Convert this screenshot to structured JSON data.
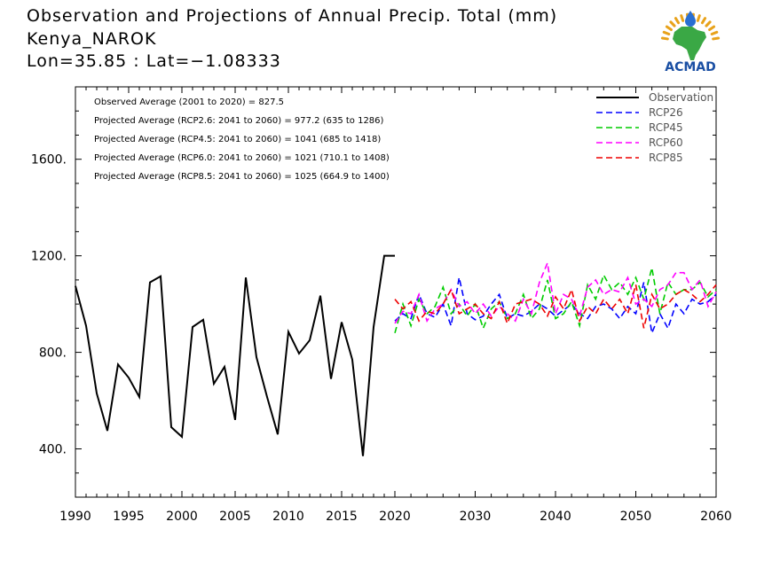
{
  "header": {
    "title": "Observation and Projections of Annual Precip. Total (mm)",
    "location": "Kenya_NAROK",
    "coords": "Lon=35.85 : Lat=−1.08333"
  },
  "logo": {
    "text": "ACMAD",
    "icon": "africa-map-logo-icon",
    "colors": {
      "africa": "#3aa845",
      "text": "#1a4fa3",
      "drop": "#2a6fd1",
      "rays": "#e8a21a"
    }
  },
  "stats": [
    "Observed Average (2001 to 2020) = 827.5",
    "Projected Average (RCP2.6: 2041 to 2060) = 977.2 (635 to 1286)",
    "Projected Average (RCP4.5: 2041 to 2060) = 1041 (685 to 1418)",
    "Projected Average (RCP6.0: 2041 to 2060) = 1021 (710.1 to 1408)",
    "Projected Average (RCP8.5: 2041 to 2060) = 1025 (664.9 to 1400)"
  ],
  "chart_data": {
    "type": "line",
    "xlim": [
      1990,
      2060
    ],
    "ylim": [
      200,
      1900
    ],
    "x_ticks": [
      1990,
      1995,
      2000,
      2005,
      2010,
      2015,
      2020,
      2030,
      2040,
      2050,
      2060
    ],
    "x_tick_labels": [
      "1990",
      "1995",
      "2000",
      "2005",
      "2010",
      "2015",
      "2020",
      "2030",
      "2040",
      "2050",
      "2060"
    ],
    "y_ticks": [
      400,
      800,
      1200,
      1600
    ],
    "y_tick_labels": [
      "400.",
      "800.",
      "1200.",
      "1600."
    ],
    "legend_position": "top-right",
    "series": [
      {
        "name": "Observation",
        "color": "#000000",
        "dash": "solid",
        "x": [
          1990,
          1991,
          1992,
          1993,
          1994,
          1995,
          1996,
          1997,
          1998,
          1999,
          2000,
          2001,
          2002,
          2003,
          2004,
          2005,
          2006,
          2007,
          2008,
          2009,
          2010,
          2011,
          2012,
          2013,
          2014,
          2015,
          2016,
          2017,
          2018,
          2019,
          2020
        ],
        "values": [
          1075,
          910,
          630,
          475,
          750,
          695,
          615,
          1090,
          1115,
          490,
          450,
          905,
          935,
          670,
          740,
          520,
          1110,
          780,
          615,
          460,
          885,
          795,
          850,
          1035,
          690,
          925,
          770,
          370,
          905,
          1200,
          1200
        ]
      },
      {
        "name": "RCP26",
        "color": "#0000ff",
        "dash": "dashed",
        "x": [
          2020,
          2021,
          2022,
          2023,
          2024,
          2025,
          2026,
          2027,
          2028,
          2029,
          2030,
          2031,
          2032,
          2033,
          2034,
          2035,
          2036,
          2037,
          2038,
          2039,
          2040,
          2041,
          2042,
          2043,
          2044,
          2045,
          2046,
          2047,
          2048,
          2049,
          2050,
          2051,
          2052,
          2053,
          2054,
          2055,
          2056,
          2057,
          2058,
          2059,
          2060
        ],
        "values": [
          930,
          960,
          940,
          1040,
          960,
          945,
          1000,
          910,
          1110,
          960,
          935,
          950,
          1000,
          1040,
          940,
          960,
          950,
          970,
          1000,
          980,
          950,
          975,
          1000,
          960,
          940,
          990,
          1000,
          980,
          940,
          990,
          960,
          1090,
          880,
          960,
          900,
          1000,
          960,
          1020,
          1000,
          1010,
          1040
        ]
      },
      {
        "name": "RCP45",
        "color": "#00cc00",
        "dash": "dashed",
        "x": [
          2020,
          2021,
          2022,
          2023,
          2024,
          2025,
          2026,
          2027,
          2028,
          2029,
          2030,
          2031,
          2032,
          2033,
          2034,
          2035,
          2036,
          2037,
          2038,
          2039,
          2040,
          2041,
          2042,
          2043,
          2044,
          2045,
          2046,
          2047,
          2048,
          2049,
          2050,
          2051,
          2052,
          2053,
          2054,
          2055,
          2056,
          2057,
          2058,
          2059,
          2060
        ],
        "values": [
          880,
          1000,
          910,
          1020,
          960,
          990,
          1070,
          960,
          1000,
          950,
          1000,
          900,
          980,
          1010,
          940,
          960,
          1040,
          940,
          980,
          1100,
          940,
          960,
          1010,
          910,
          1080,
          1020,
          1120,
          1060,
          1090,
          1040,
          1110,
          1020,
          1150,
          960,
          1090,
          1040,
          1060,
          1060,
          1090,
          1030,
          1060
        ]
      },
      {
        "name": "RCP60",
        "color": "#ff00ff",
        "dash": "dashed",
        "x": [
          2020,
          2021,
          2022,
          2023,
          2024,
          2025,
          2026,
          2027,
          2028,
          2029,
          2030,
          2031,
          2032,
          2033,
          2034,
          2035,
          2036,
          2037,
          2038,
          2039,
          2040,
          2041,
          2042,
          2043,
          2044,
          2045,
          2046,
          2047,
          2048,
          2049,
          2050,
          2051,
          2052,
          2053,
          2054,
          2055,
          2056,
          2057,
          2058,
          2059,
          2060
        ],
        "values": [
          920,
          970,
          960,
          1040,
          930,
          980,
          1000,
          1060,
          990,
          1010,
          960,
          1000,
          950,
          990,
          960,
          930,
          1020,
          960,
          1090,
          1170,
          960,
          1040,
          1020,
          950,
          1070,
          1100,
          1040,
          1060,
          1050,
          1110,
          1000,
          1020,
          990,
          1060,
          1080,
          1130,
          1130,
          1060,
          1100,
          990,
          1050
        ]
      },
      {
        "name": "RCP85",
        "color": "#ee0000",
        "dash": "dashed",
        "x": [
          2020,
          2021,
          2022,
          2023,
          2024,
          2025,
          2026,
          2027,
          2028,
          2029,
          2030,
          2031,
          2032,
          2033,
          2034,
          2035,
          2036,
          2037,
          2038,
          2039,
          2040,
          2041,
          2042,
          2043,
          2044,
          2045,
          2046,
          2047,
          2048,
          2049,
          2050,
          2051,
          2052,
          2053,
          2054,
          2055,
          2056,
          2057,
          2058,
          2059,
          2060
        ],
        "values": [
          1020,
          980,
          1010,
          930,
          970,
          960,
          1000,
          1060,
          960,
          980,
          1000,
          960,
          940,
          1010,
          920,
          1000,
          1010,
          1020,
          1000,
          950,
          1030,
          980,
          1060,
          930,
          990,
          960,
          1020,
          980,
          1020,
          960,
          1080,
          900,
          1040,
          980,
          1000,
          1040,
          1060,
          1040,
          1010,
          1040,
          1080
        ]
      }
    ]
  }
}
